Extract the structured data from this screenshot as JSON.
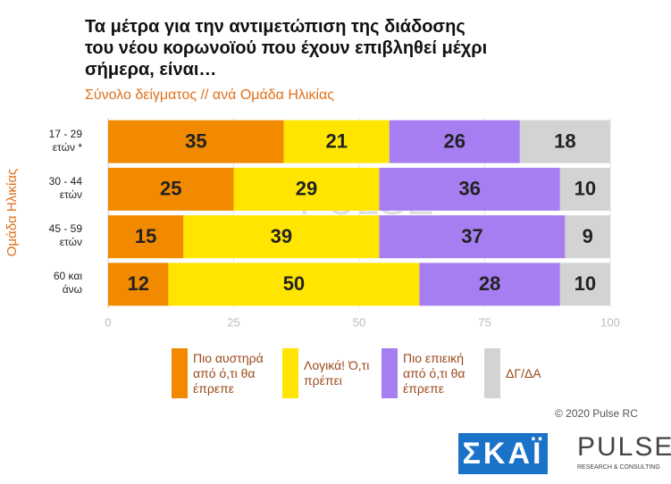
{
  "chart_data": {
    "type": "stacked-barh",
    "title": "Τα μέτρα για την αντιμετώπιση της διάδοσης του νέου κορωνοϊού που έχουν επιβληθεί μέχρι σήμερα, είναι…",
    "subtitle": "Σύνολο δείγματος // ανά Ομάδα Ηλικίας",
    "y_label": "Ομάδα Ηλικίας",
    "categories": [
      "17 - 29 ετών *",
      "30 - 44 ετών",
      "45 - 59 ετών",
      "60 και άνω"
    ],
    "series": [
      {
        "name": "Πιο αυστηρά από ό,τι θα έπρεπε",
        "color": "#f28a00",
        "values": [
          35,
          25,
          15,
          12
        ]
      },
      {
        "name": "Λογικά! Ό,τι πρέπει",
        "color": "#ffe500",
        "values": [
          21,
          29,
          39,
          50
        ]
      },
      {
        "name": "Πιο επιεική από ό,τι θα έπρεπε",
        "color": "#a67ef2",
        "values": [
          26,
          36,
          37,
          28
        ]
      },
      {
        "name": "ΔΓ/ΔΑ",
        "color": "#d3d3d3",
        "values": [
          18,
          10,
          9,
          10
        ]
      }
    ],
    "xlim": [
      0,
      100
    ],
    "xticks": [
      0,
      25,
      50,
      75,
      100
    ],
    "grid": true
  },
  "watermark": {
    "main": "PULSE",
    "sub": "RESEARCH & CONSULTING"
  },
  "footer": {
    "credit": "© 2020 Pulse RC",
    "logo_skai": "ΣΚΑΪ",
    "logo_pulse": "PULSE",
    "logo_pulse_sub": "RESEARCH & CONSULTING"
  }
}
